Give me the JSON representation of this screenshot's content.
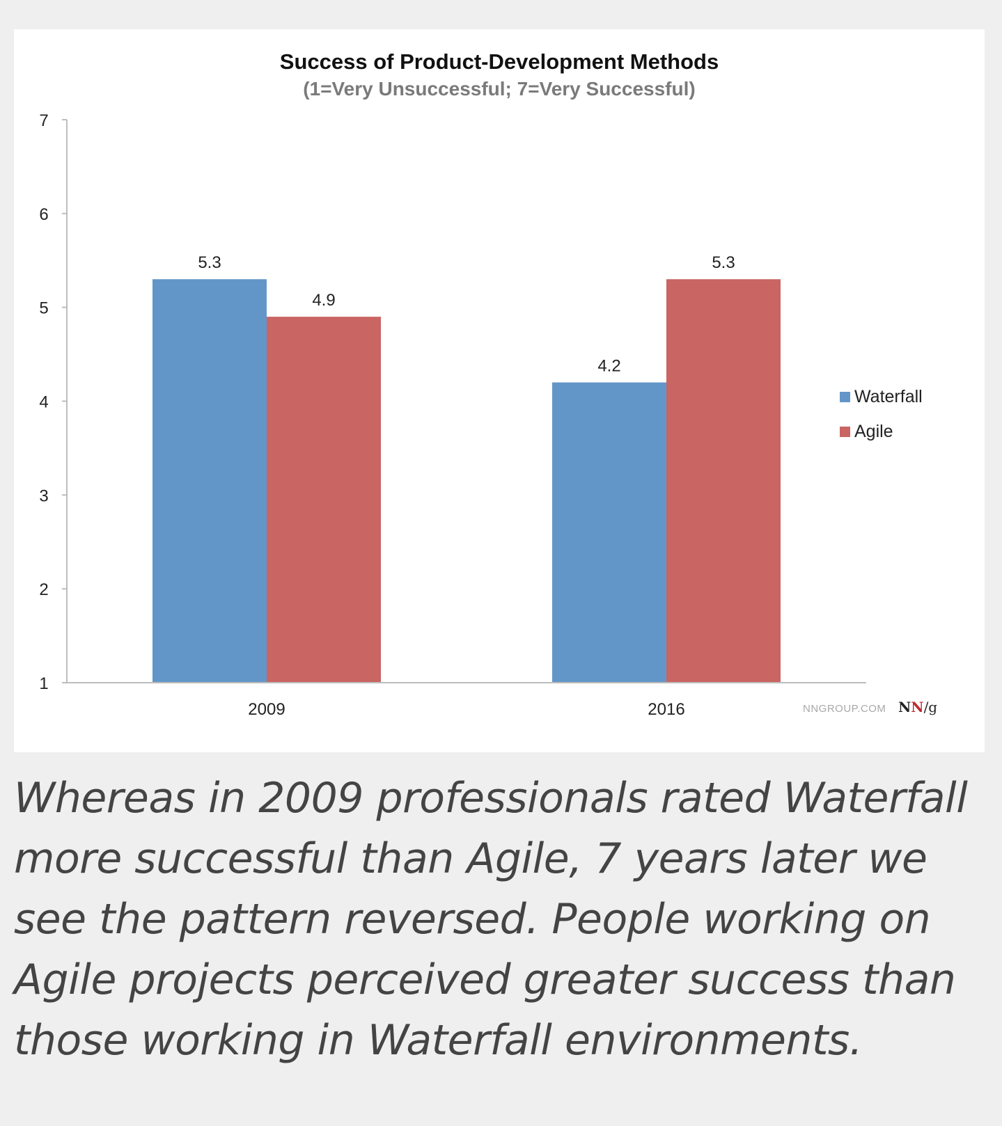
{
  "chart_data": {
    "type": "bar",
    "title": "Success of Product-Development Methods",
    "subtitle": "(1=Very Unsuccessful; 7=Very Successful)",
    "categories": [
      "2009",
      "2016"
    ],
    "series": [
      {
        "name": "Waterfall",
        "values": [
          5.3,
          4.2
        ],
        "color": "#6396c8"
      },
      {
        "name": "Agile",
        "values": [
          4.9,
          5.3
        ],
        "color": "#c96562"
      }
    ],
    "ylim": [
      1,
      7
    ],
    "yticks": [
      1,
      2,
      3,
      4,
      5,
      6,
      7
    ],
    "xlabel": "",
    "ylabel": "",
    "grid": false,
    "legend_position": "right"
  },
  "watermark": {
    "site": "NNGROUP.COM",
    "logo_n1": "N",
    "logo_n2": "N",
    "logo_g": "/g"
  },
  "colors": {
    "logo_dark": "#222222",
    "logo_red": "#c1272d"
  },
  "caption": "Whereas in 2009 professionals rated Waterfall more successful than Agile, 7 years later we see the pattern reversed. People working on Agile projects perceived greater success than those working in Waterfall environments."
}
